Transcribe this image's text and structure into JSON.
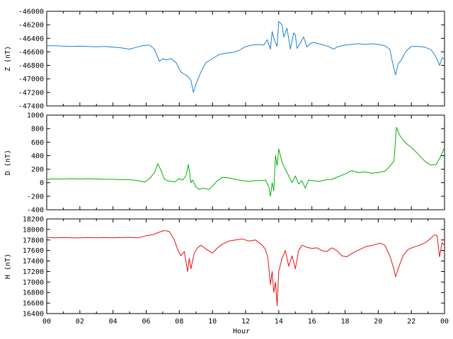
{
  "chart_data": [
    {
      "type": "line",
      "ylabel": "Z (nT)",
      "ylim": [
        -47400,
        -46000
      ],
      "yticks": [
        -46000,
        -46200,
        -46400,
        -46600,
        -46800,
        -47000,
        -47200,
        -47400
      ],
      "xlim": [
        0,
        24
      ],
      "grid": false,
      "series": [
        {
          "color": "#1a7fd6",
          "x": [
            0,
            0.5,
            1,
            1.5,
            2,
            2.5,
            3,
            3.5,
            4,
            4.5,
            5,
            5.3,
            5.6,
            5.9,
            6.2,
            6.5,
            6.8,
            7,
            7.2,
            7.5,
            7.8,
            8.1,
            8.3,
            8.5,
            8.7,
            8.85,
            9,
            9.3,
            9.6,
            10,
            10.4,
            10.8,
            11.2,
            11.6,
            12,
            12.4,
            12.8,
            13.1,
            13.3,
            13.5,
            13.6,
            13.7,
            13.9,
            14.0,
            14.2,
            14.3,
            14.5,
            14.7,
            14.9,
            15.0,
            15.1,
            15.3,
            15.5,
            15.7,
            15.9,
            16.1,
            16.4,
            16.7,
            17,
            17.3,
            17.6,
            18,
            18.4,
            18.8,
            19.2,
            19.6,
            20,
            20.4,
            20.7,
            20.9,
            21.05,
            21.2,
            21.4,
            21.6,
            21.8,
            22,
            22.4,
            22.8,
            23.2,
            23.5,
            23.7,
            23.85,
            24
          ],
          "y": [
            -46510,
            -46510,
            -46515,
            -46520,
            -46515,
            -46520,
            -46525,
            -46520,
            -46530,
            -46540,
            -46560,
            -46540,
            -46520,
            -46505,
            -46500,
            -46560,
            -46740,
            -46700,
            -46720,
            -46700,
            -46760,
            -46900,
            -46930,
            -46960,
            -47020,
            -47200,
            -47080,
            -46900,
            -46760,
            -46700,
            -46640,
            -46620,
            -46610,
            -46580,
            -46520,
            -46500,
            -46490,
            -46500,
            -46420,
            -46560,
            -46300,
            -46400,
            -46520,
            -46150,
            -46200,
            -46380,
            -46250,
            -46560,
            -46320,
            -46350,
            -46550,
            -46470,
            -46380,
            -46530,
            -46480,
            -46460,
            -46480,
            -46500,
            -46520,
            -46560,
            -46520,
            -46500,
            -46490,
            -46480,
            -46490,
            -46480,
            -46490,
            -46510,
            -46560,
            -46800,
            -46940,
            -46780,
            -46720,
            -46620,
            -46560,
            -46520,
            -46520,
            -46530,
            -46570,
            -46680,
            -46800,
            -46690,
            -46700
          ]
        }
      ]
    },
    {
      "type": "line",
      "ylabel": "D (nT)",
      "ylim": [
        -400,
        1000
      ],
      "yticks": [
        1000,
        800,
        600,
        400,
        200,
        0,
        -200,
        -400
      ],
      "xlim": [
        0,
        24
      ],
      "grid": false,
      "series": [
        {
          "color": "#00b000",
          "x": [
            0,
            0.5,
            1,
            1.5,
            2,
            2.5,
            3,
            3.5,
            4,
            4.5,
            5,
            5.5,
            5.9,
            6.2,
            6.5,
            6.7,
            6.9,
            7.1,
            7.3,
            7.5,
            7.7,
            8,
            8.2,
            8.4,
            8.55,
            8.7,
            8.8,
            9,
            9.2,
            9.4,
            9.6,
            9.8,
            10,
            10.3,
            10.6,
            11,
            11.4,
            11.8,
            12.2,
            12.6,
            13,
            13.2,
            13.4,
            13.5,
            13.6,
            13.7,
            13.8,
            13.9,
            14,
            14.2,
            14.4,
            14.6,
            14.8,
            15,
            15.2,
            15.4,
            15.6,
            15.8,
            16,
            16.4,
            16.8,
            17.2,
            17.6,
            18,
            18.4,
            18.8,
            19.2,
            19.6,
            20,
            20.4,
            20.7,
            20.95,
            21.1,
            21.3,
            21.6,
            22,
            22.3,
            22.6,
            22.9,
            23.2,
            23.5,
            23.75,
            24
          ],
          "y": [
            55,
            55,
            55,
            60,
            55,
            60,
            55,
            50,
            50,
            45,
            45,
            30,
            10,
            60,
            150,
            280,
            180,
            50,
            30,
            20,
            10,
            60,
            40,
            100,
            270,
            0,
            40,
            -60,
            -100,
            -80,
            -90,
            -100,
            -50,
            30,
            80,
            70,
            50,
            30,
            20,
            30,
            30,
            40,
            -60,
            -200,
            0,
            -120,
            400,
            250,
            500,
            300,
            200,
            100,
            0,
            100,
            -20,
            30,
            -80,
            40,
            30,
            20,
            40,
            50,
            90,
            130,
            180,
            150,
            160,
            140,
            150,
            170,
            240,
            320,
            820,
            700,
            600,
            520,
            450,
            370,
            300,
            260,
            270,
            380,
            520
          ]
        }
      ]
    },
    {
      "type": "line",
      "ylabel": "H (nT)",
      "ylim": [
        16400,
        18200
      ],
      "yticks": [
        18200,
        18000,
        17800,
        17600,
        17400,
        17200,
        17000,
        16800,
        16600,
        16400
      ],
      "xlim": [
        0,
        24
      ],
      "xticks": [
        "00",
        "02",
        "04",
        "06",
        "08",
        "10",
        "12",
        "14",
        "16",
        "18",
        "20",
        "22",
        "00"
      ],
      "xlabel": "Hour",
      "grid": false,
      "series": [
        {
          "color": "#e41010",
          "x": [
            0,
            0.5,
            1,
            1.5,
            2,
            2.5,
            3,
            3.5,
            4,
            4.5,
            5,
            5.5,
            6,
            6.4,
            6.8,
            7.1,
            7.4,
            7.7,
            7.9,
            8.1,
            8.3,
            8.5,
            8.6,
            8.7,
            8.9,
            9.1,
            9.3,
            9.6,
            10,
            10.3,
            10.6,
            11,
            11.4,
            11.8,
            12.2,
            12.6,
            13,
            13.2,
            13.35,
            13.5,
            13.6,
            13.7,
            13.8,
            13.9,
            14.0,
            14.2,
            14.4,
            14.6,
            14.8,
            15.0,
            15.2,
            15.4,
            15.7,
            16.0,
            16.3,
            16.6,
            16.9,
            17.2,
            17.5,
            17.8,
            18.1,
            18.5,
            18.9,
            19.3,
            19.7,
            20.1,
            20.4,
            20.7,
            20.9,
            21.05,
            21.2,
            21.5,
            21.8,
            22.1,
            22.5,
            22.9,
            23.2,
            23.4,
            23.55,
            23.7,
            23.85,
            24
          ],
          "y": [
            17850,
            17840,
            17845,
            17840,
            17840,
            17845,
            17840,
            17845,
            17840,
            17845,
            17850,
            17840,
            17880,
            17900,
            17950,
            17980,
            17960,
            17800,
            17620,
            17500,
            17580,
            17200,
            17450,
            17250,
            17550,
            17650,
            17700,
            17630,
            17550,
            17650,
            17720,
            17780,
            17800,
            17820,
            17780,
            17800,
            17700,
            17620,
            17450,
            16950,
            17200,
            16800,
            17000,
            16550,
            17200,
            17450,
            17600,
            17300,
            17500,
            17250,
            17600,
            17700,
            17660,
            17640,
            17650,
            17600,
            17580,
            17650,
            17600,
            17500,
            17480,
            17560,
            17620,
            17680,
            17700,
            17740,
            17700,
            17500,
            17300,
            17100,
            17250,
            17500,
            17620,
            17660,
            17700,
            17760,
            17840,
            17900,
            17880,
            17480,
            17750,
            17700
          ]
        }
      ]
    }
  ]
}
